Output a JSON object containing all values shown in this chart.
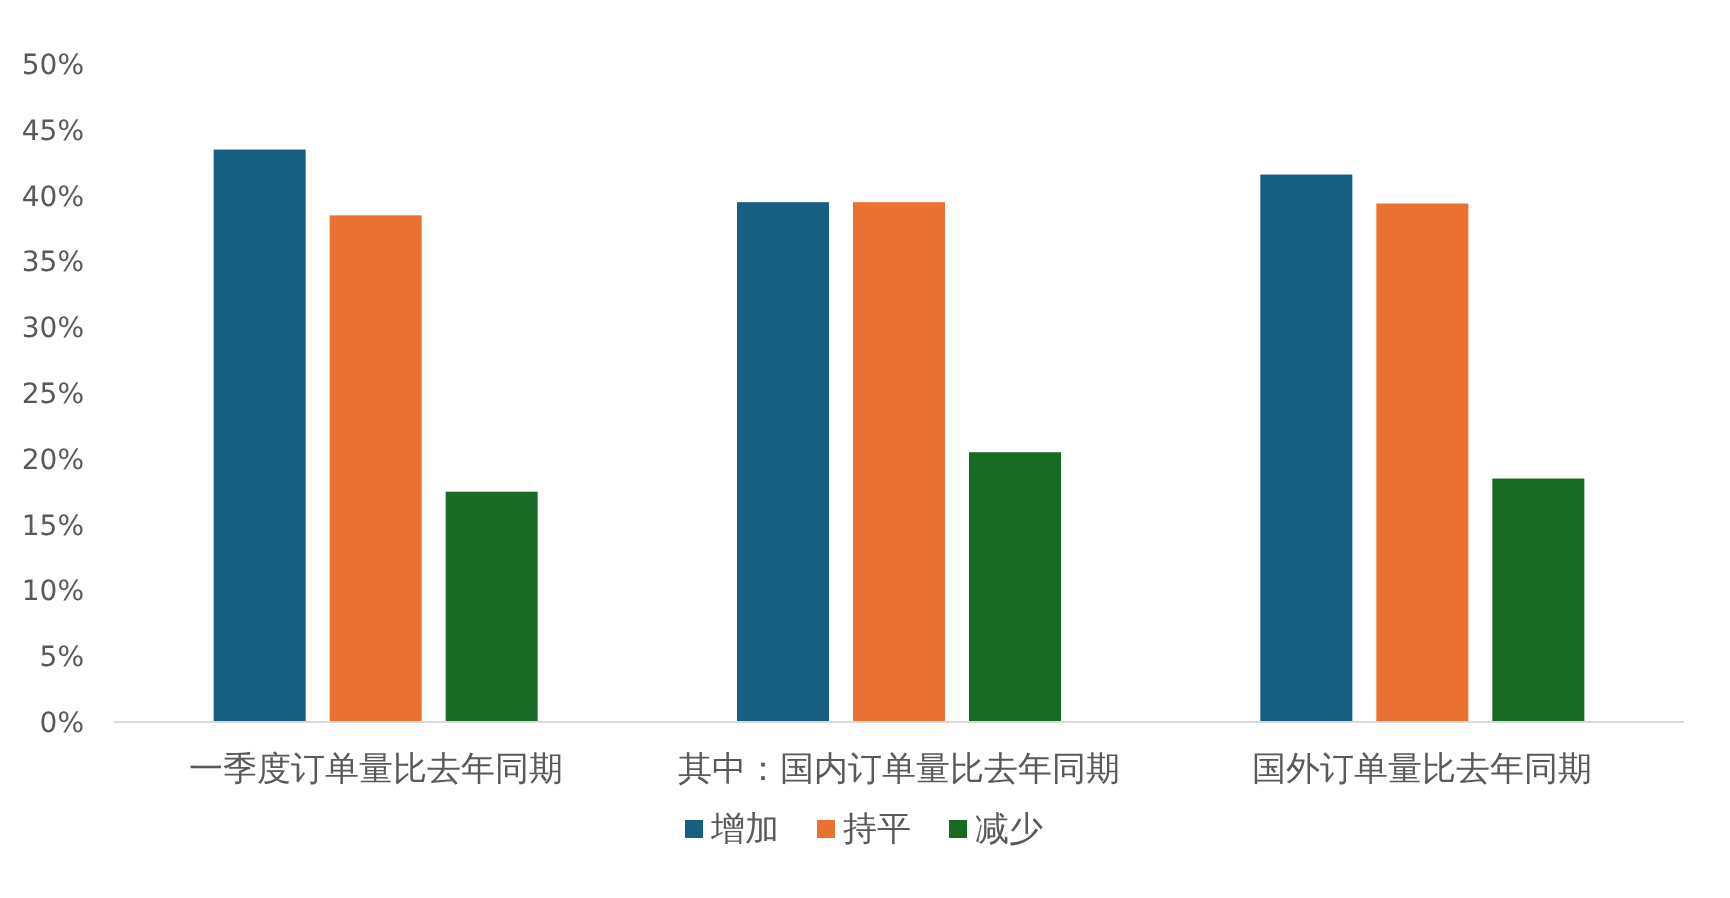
{
  "chart_data": {
    "type": "bar",
    "categories": [
      "一季度订单量比去年同期",
      "其中：国内订单量比去年同期",
      "国外订单量比去年同期"
    ],
    "series": [
      {
        "name": "增加",
        "color": "#175f82",
        "values": [
          43.5,
          39.5,
          41.6
        ]
      },
      {
        "name": "持平",
        "color": "#e97132",
        "values": [
          38.5,
          39.5,
          39.4
        ]
      },
      {
        "name": "减少",
        "color": "#196b24",
        "values": [
          17.5,
          20.5,
          18.5
        ]
      }
    ],
    "ylim": [
      0,
      50
    ],
    "yticks": [
      {
        "value": 0,
        "label": "0%"
      },
      {
        "value": 5,
        "label": "5%"
      },
      {
        "value": 10,
        "label": "10%"
      },
      {
        "value": 15,
        "label": "15%"
      },
      {
        "value": 20,
        "label": "20%"
      },
      {
        "value": 25,
        "label": "25%"
      },
      {
        "value": 30,
        "label": "30%"
      },
      {
        "value": 35,
        "label": "35%"
      },
      {
        "value": 40,
        "label": "40%"
      },
      {
        "value": 45,
        "label": "45%"
      },
      {
        "value": 50,
        "label": "50%"
      }
    ],
    "legend": "bottom"
  }
}
